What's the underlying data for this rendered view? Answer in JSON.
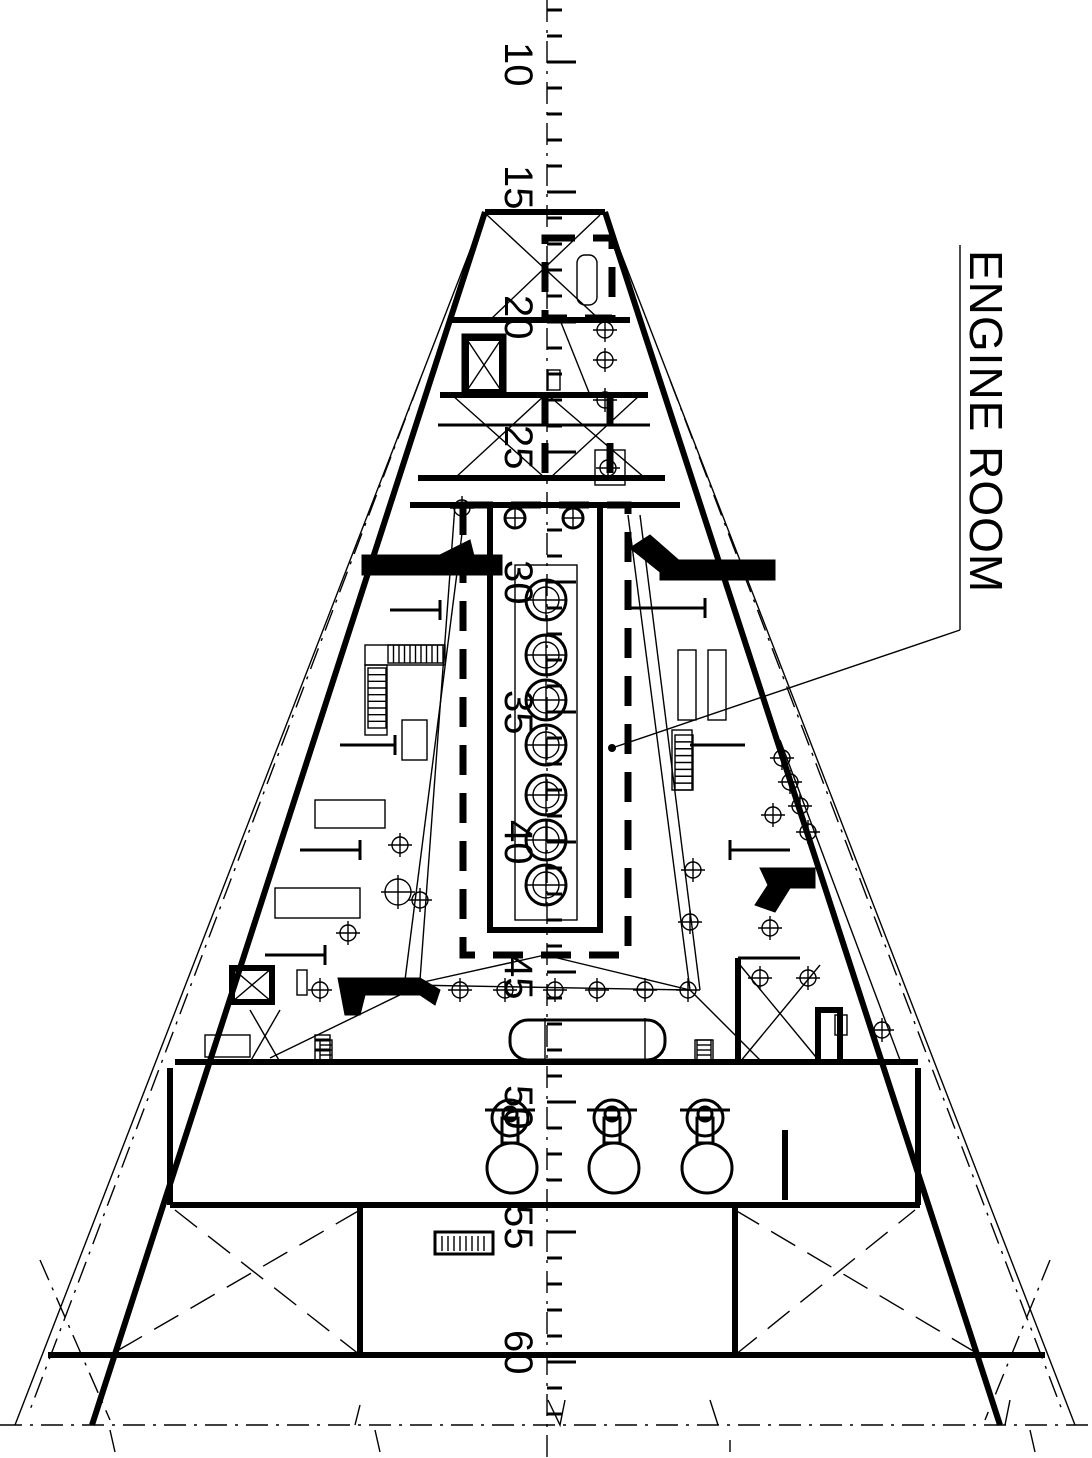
{
  "diagram": {
    "callout_label": "ENGINE ROOM",
    "frame_numbers": [
      "10",
      "15",
      "20",
      "25",
      "30",
      "35",
      "40",
      "45",
      "50",
      "55",
      "60"
    ]
  },
  "colors": {
    "ink": "#000000",
    "paper": "#ffffff"
  }
}
